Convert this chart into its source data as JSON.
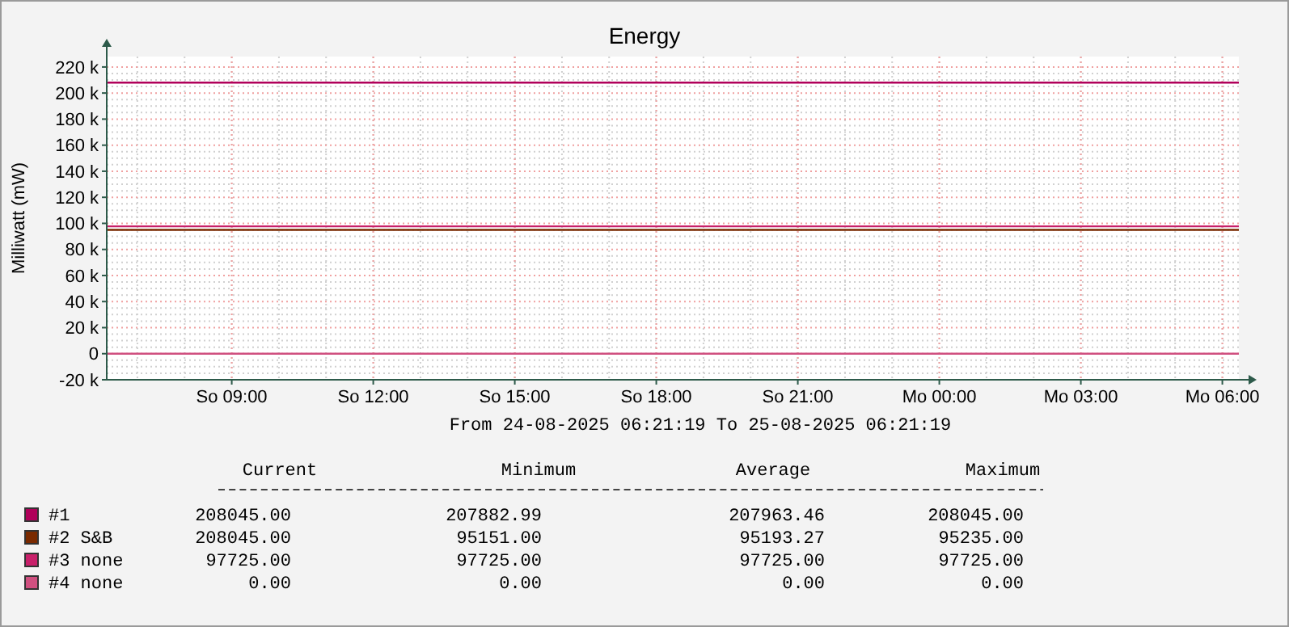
{
  "chart_data": {
    "type": "line",
    "title": "Energy",
    "ylabel": "Milliwatt (mW)",
    "xlabel": "From 24-08-2025 06:21:19 To 25-08-2025 06:21:19",
    "xlim": [
      "2025-08-24T06:21",
      "2025-08-25T06:21"
    ],
    "xticks": [
      {
        "value": "2025-08-24T09:00",
        "label": "So 09:00"
      },
      {
        "value": "2025-08-24T12:00",
        "label": "So 12:00"
      },
      {
        "value": "2025-08-24T15:00",
        "label": "So 15:00"
      },
      {
        "value": "2025-08-24T18:00",
        "label": "So 18:00"
      },
      {
        "value": "2025-08-24T21:00",
        "label": "So 21:00"
      },
      {
        "value": "2025-08-25T00:00",
        "label": "Mo 00:00"
      },
      {
        "value": "2025-08-25T03:00",
        "label": "Mo 03:00"
      },
      {
        "value": "2025-08-25T06:00",
        "label": "Mo 06:00"
      }
    ],
    "ylim": [
      -20000,
      228000
    ],
    "yticks": [
      {
        "value": -20000,
        "label": "-20 k"
      },
      0,
      {
        "value": 20000,
        "label": "20 k"
      },
      {
        "value": 40000,
        "label": "40 k"
      },
      {
        "value": 60000,
        "label": "60 k"
      },
      {
        "value": 80000,
        "label": "80 k"
      },
      {
        "value": 100000,
        "label": "100 k"
      },
      {
        "value": 120000,
        "label": "120 k"
      },
      {
        "value": 140000,
        "label": "140 k"
      },
      {
        "value": 160000,
        "label": "160 k"
      },
      {
        "value": 180000,
        "label": "180 k"
      },
      {
        "value": 200000,
        "label": "200 k"
      },
      {
        "value": 220000,
        "label": "220 k"
      }
    ],
    "grid": true,
    "legend": "bottom",
    "marker": "none",
    "line_style": "solid",
    "series": [
      {
        "name": "#1",
        "color": "#b0005a",
        "x": [
          "2025-08-24T06:21",
          "2025-08-25T06:21"
        ],
        "values": [
          208000,
          208000
        ]
      },
      {
        "name": "#2 S&B",
        "color": "#7a2a00",
        "x": [
          "2025-08-24T06:21",
          "2025-08-25T06:21"
        ],
        "values": [
          95000,
          95000
        ]
      },
      {
        "name": "#3 none",
        "color": "#c8206a",
        "x": [
          "2025-08-24T06:21",
          "2025-08-25T06:21"
        ],
        "values": [
          97700,
          97700
        ]
      },
      {
        "name": "#4 none",
        "color": "#d05080",
        "x": [
          "2025-08-24T06:21",
          "2025-08-25T06:21"
        ],
        "values": [
          0,
          0
        ]
      }
    ],
    "annotations": [
      "Current",
      "Minimum",
      "Average",
      "Maximum",
      "208045.00",
      "207882.99",
      "207963.46",
      "208045.00",
      "208045.00",
      "95151.00",
      "95193.27",
      "95235.00",
      "97725.00",
      "97725.00",
      "97725.00",
      "97725.00",
      "0.00",
      "0.00",
      "0.00",
      "0.00"
    ]
  }
}
